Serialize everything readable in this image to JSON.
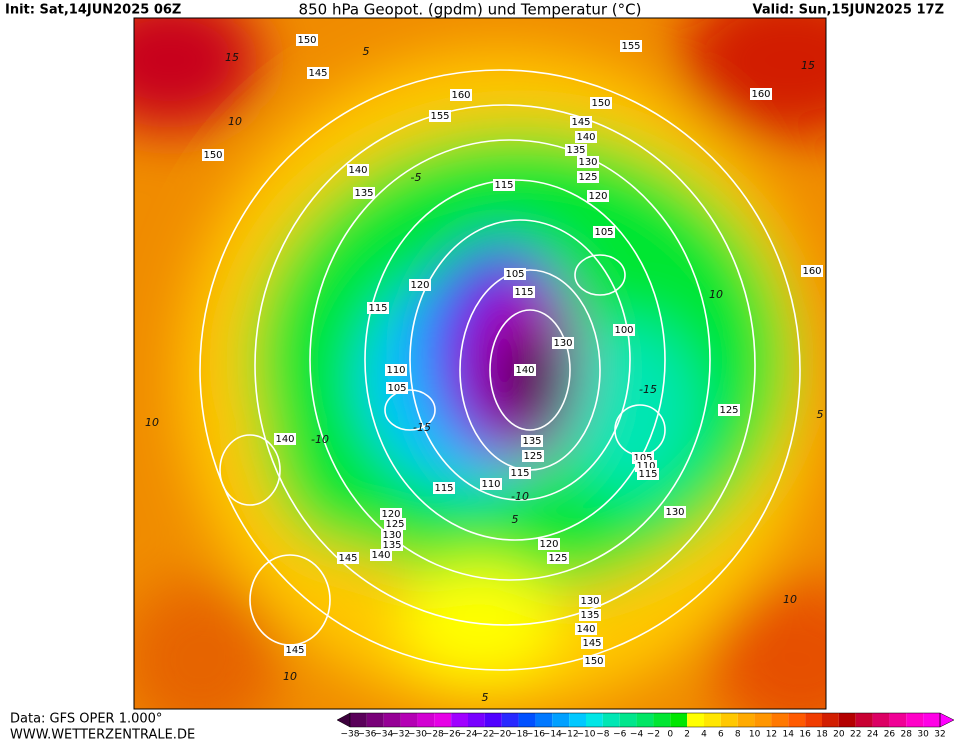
{
  "header": {
    "init": "Init: Sat,14JUN2025 06Z",
    "title": "850 hPa Geopot. (gpdm) und Temperatur (°C)",
    "valid": "Valid: Sun,15JUN2025 17Z"
  },
  "footer": {
    "data": "Data: GFS OPER 1.000°",
    "site": "WWW.WETTERZENTRALE.DE"
  },
  "colorbar": {
    "labels": [
      "−38",
      "−36",
      "−34",
      "−32",
      "−30",
      "−28",
      "−26",
      "−24",
      "−22",
      "−20",
      "−18",
      "−16",
      "−14",
      "−12",
      "−10",
      "−8",
      "−6",
      "−4",
      "−2",
      "0",
      "2",
      "4",
      "6",
      "8",
      "10",
      "12",
      "14",
      "16",
      "18",
      "20",
      "22",
      "24",
      "26",
      "28",
      "30",
      "32"
    ],
    "colors": [
      "#5a005a",
      "#780078",
      "#960096",
      "#b400b4",
      "#d200d2",
      "#e600e6",
      "#a000ff",
      "#7800ff",
      "#5000ff",
      "#2828ff",
      "#0050ff",
      "#0078ff",
      "#00a0ff",
      "#00c8ff",
      "#00e6e6",
      "#00e6b4",
      "#00e68c",
      "#00e664",
      "#00e632",
      "#00e600",
      "#ffff00",
      "#ffe600",
      "#ffc800",
      "#ffaa00",
      "#ff9600",
      "#ff7800",
      "#ff5a00",
      "#f03c00",
      "#d21e00",
      "#b40000",
      "#c80032",
      "#dc0064",
      "#f00096",
      "#ff00c8",
      "#ff00e6"
    ],
    "under_color": "#3c003c",
    "over_color": "#ff00ff"
  },
  "map": {
    "geopotential_labels": [
      "150",
      "145",
      "160",
      "155",
      "150",
      "140",
      "135",
      "115",
      "155",
      "150",
      "145",
      "140",
      "135",
      "130",
      "125",
      "120",
      "105",
      "160",
      "160",
      "105",
      "115",
      "120",
      "115",
      "100",
      "130",
      "140",
      "110",
      "105",
      "140",
      "125",
      "135",
      "125",
      "105",
      "110",
      "115",
      "115",
      "110",
      "115",
      "130",
      "120",
      "125",
      "130",
      "135",
      "140",
      "145",
      "120",
      "125",
      "130",
      "135",
      "140",
      "145",
      "150",
      "145"
    ],
    "temperature_labels": [
      "15",
      "10",
      "5",
      "-5",
      "-10",
      "-15",
      "10",
      "5",
      "10",
      "-15",
      "10",
      "5",
      "10",
      "-10",
      "5",
      "15"
    ]
  }
}
